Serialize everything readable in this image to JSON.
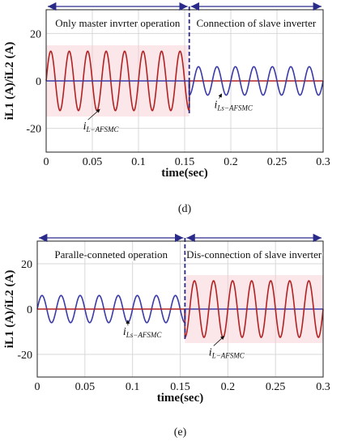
{
  "chart_data": [
    {
      "id": "d",
      "type": "line",
      "caption": "(d)",
      "xlabel": "time(sec)",
      "ylabel": "iL1 (A)/iL2 (A)",
      "xlim": [
        0,
        0.3
      ],
      "ylim": [
        -30,
        30
      ],
      "xticks": [
        "0",
        "0.05",
        "0.1",
        "0.15",
        "0.2",
        "0.25",
        "0.3"
      ],
      "yticks": [
        "20",
        "0",
        "-20"
      ],
      "grid": true,
      "switch_time": 0.155,
      "frequency_hz": 50,
      "series": [
        {
          "color": "#b22222",
          "amplitude": 12.5,
          "x_range": [
            0,
            0.155
          ],
          "after": "zero"
        },
        {
          "color": "#3a3aa8",
          "amplitude": 6,
          "x_range": [
            0.155,
            0.3
          ],
          "before": "zero"
        }
      ],
      "annotations": [
        {
          "text": "Only master invrter operation",
          "x_range": [
            0,
            0.155
          ]
        },
        {
          "text": "Connection of slave inverter",
          "x_range": [
            0.155,
            0.3
          ]
        }
      ],
      "labels": [
        {
          "sym": "i",
          "sub": "L−AFSMC"
        },
        {
          "sym": "i",
          "sub": "Ls−AFSMC"
        }
      ]
    },
    {
      "id": "e",
      "type": "line",
      "caption": "(e)",
      "xlabel": "time(sec)",
      "ylabel": "iL1 (A)/iL2 (A)",
      "xlim": [
        0,
        0.3
      ],
      "ylim": [
        -30,
        30
      ],
      "xticks": [
        "0",
        "0.05",
        "0.1",
        "0.15",
        "0.2",
        "0.25",
        "0.3"
      ],
      "yticks": [
        "20",
        "0",
        "-20"
      ],
      "grid": true,
      "switch_time": 0.155,
      "frequency_hz": 50,
      "series": [
        {
          "color": "#3a3aa8",
          "amplitude": 6,
          "x_range": [
            0,
            0.155
          ],
          "after": "zero"
        },
        {
          "color": "#b22222",
          "amplitude": 12.5,
          "x_range": [
            0.155,
            0.3
          ],
          "before": "zero"
        }
      ],
      "annotations": [
        {
          "text": "Paralle-conneted operation",
          "x_range": [
            0,
            0.155
          ]
        },
        {
          "text": "Dis-connection of slave inverter",
          "x_range": [
            0.155,
            0.3
          ]
        }
      ],
      "labels": [
        {
          "sym": "i",
          "sub": "Ls−AFSMC"
        },
        {
          "sym": "i",
          "sub": "L−AFSMC"
        }
      ]
    }
  ]
}
